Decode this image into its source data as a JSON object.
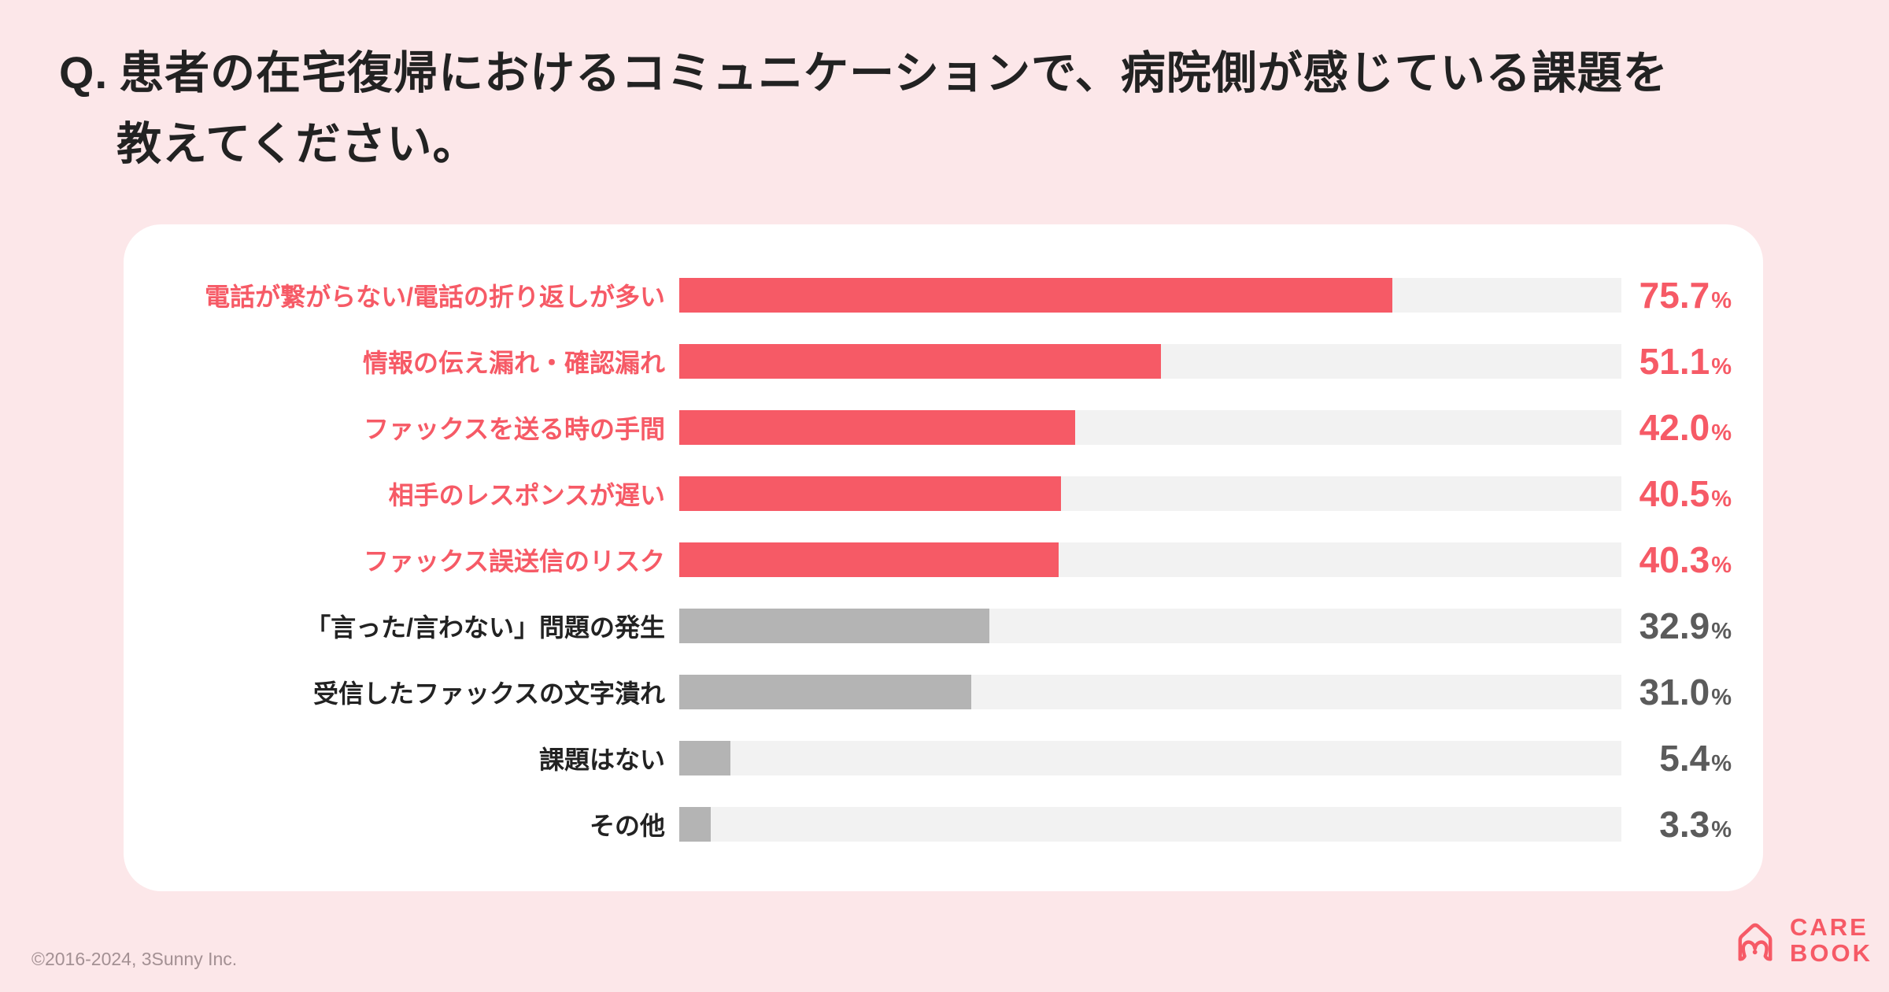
{
  "page": {
    "background_color": "#FCE7E9",
    "card_color": "#FFFFFF"
  },
  "title": {
    "prefix": "Q.",
    "line1": "患者の在宅復帰におけるコミュニケーションで、病院側が感じている課題を",
    "line2": "教えてください。"
  },
  "chart_data": {
    "type": "bar",
    "orientation": "horizontal",
    "title": "患者の在宅復帰におけるコミュニケーションで、病院側が感じている課題",
    "unit": "%",
    "xlim": [
      0,
      100
    ],
    "grid": false,
    "legend": false,
    "categories": [
      "電話が繋がらない/電話の折り返しが多い",
      "情報の伝え漏れ・確認漏れ",
      "ファックスを送る時の手間",
      "相手のレスポンスが遅い",
      "ファックス誤送信のリスク",
      "「言った/言わない」問題の発生",
      "受信したファックスの文字潰れ",
      "課題はない",
      "その他"
    ],
    "values": [
      75.7,
      51.1,
      42.0,
      40.5,
      40.3,
      32.9,
      31.0,
      5.4,
      3.3
    ],
    "value_labels": [
      "75.7",
      "51.1",
      "42.0",
      "40.5",
      "40.3",
      "32.9",
      "31.0",
      "5.4",
      "3.3"
    ],
    "highlighted": [
      true,
      true,
      true,
      true,
      true,
      false,
      false,
      false,
      false
    ],
    "colors": {
      "highlight": "#F65A66",
      "muted_bar": "#B4B4B4",
      "track": "#F2F2F2",
      "dark_label": "#222222",
      "muted_value": "#5B5B5B"
    }
  },
  "footer": {
    "copyright": "©2016-2024, 3Sunny Inc.",
    "logo": {
      "line1": "CARE",
      "line2": "BOOK"
    }
  }
}
